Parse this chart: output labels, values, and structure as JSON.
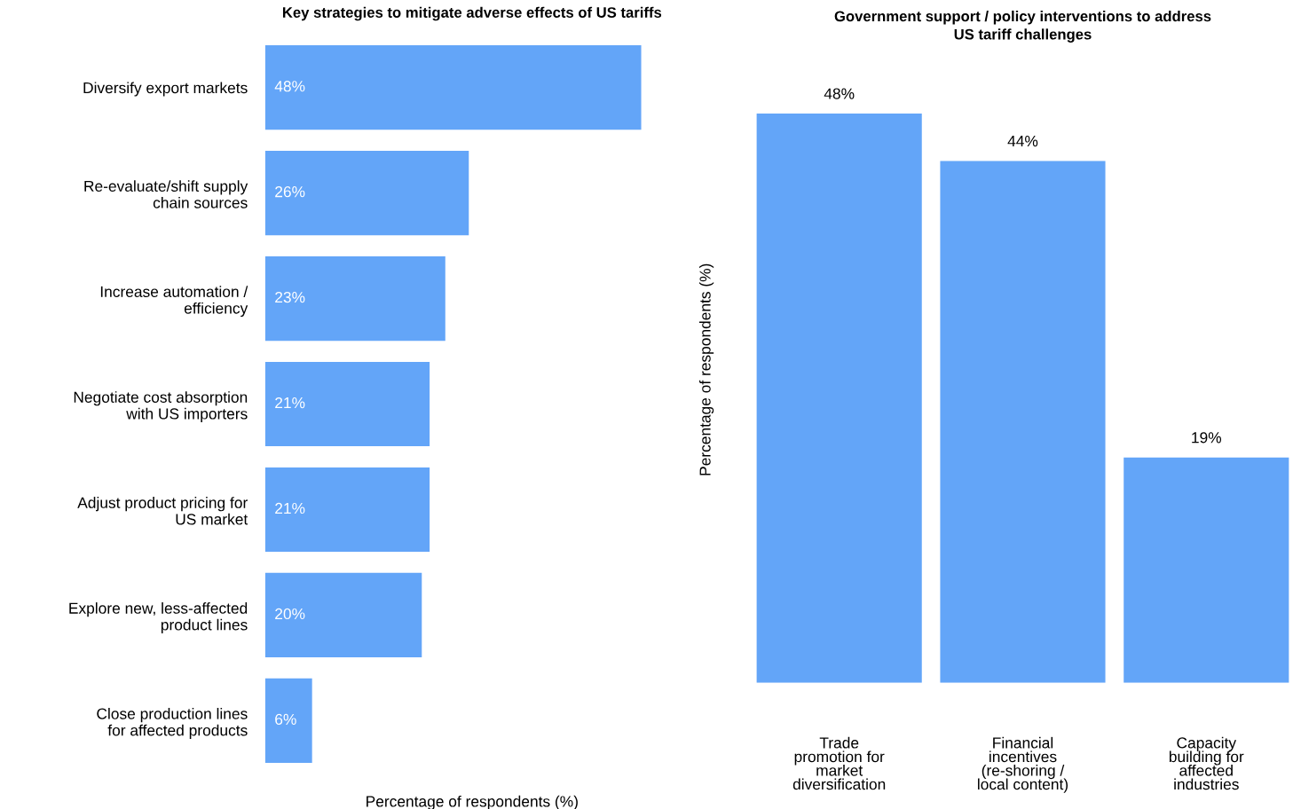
{
  "chart_data": [
    {
      "type": "bar",
      "orientation": "horizontal",
      "title": "Key strategies to mitigate adverse effects of US tariffs",
      "xlabel": "Percentage of respondents (%)",
      "categories": [
        "Diversify export markets",
        "Re-evaluate/shift supply\nchain sources",
        "Increase automation /\nefficiency",
        "Negotiate cost absorption\nwith US importers",
        "Adjust product pricing for\nUS market",
        "Explore new, less-affected\nproduct lines",
        "Close production lines\nfor affected products"
      ],
      "values": [
        48,
        26,
        23,
        21,
        21,
        20,
        6
      ],
      "color": "#63a5f8",
      "value_labels": [
        "48%",
        "26%",
        "23%",
        "21%",
        "21%",
        "20%",
        "6%"
      ]
    },
    {
      "type": "bar",
      "title": "Government support / policy interventions to address\nUS tariff challenges",
      "ylabel": "Percentage of respondents (%)",
      "categories": [
        "Trade\npromotion for\nmarket\ndiversification",
        "Financial\nincentives\n(re-shoring /\nlocal content)",
        "Capacity\nbuilding for\naffected\nindustries"
      ],
      "values": [
        48,
        44,
        19
      ],
      "color": "#63a5f8",
      "value_labels": [
        "48%",
        "44%",
        "19%"
      ]
    }
  ]
}
